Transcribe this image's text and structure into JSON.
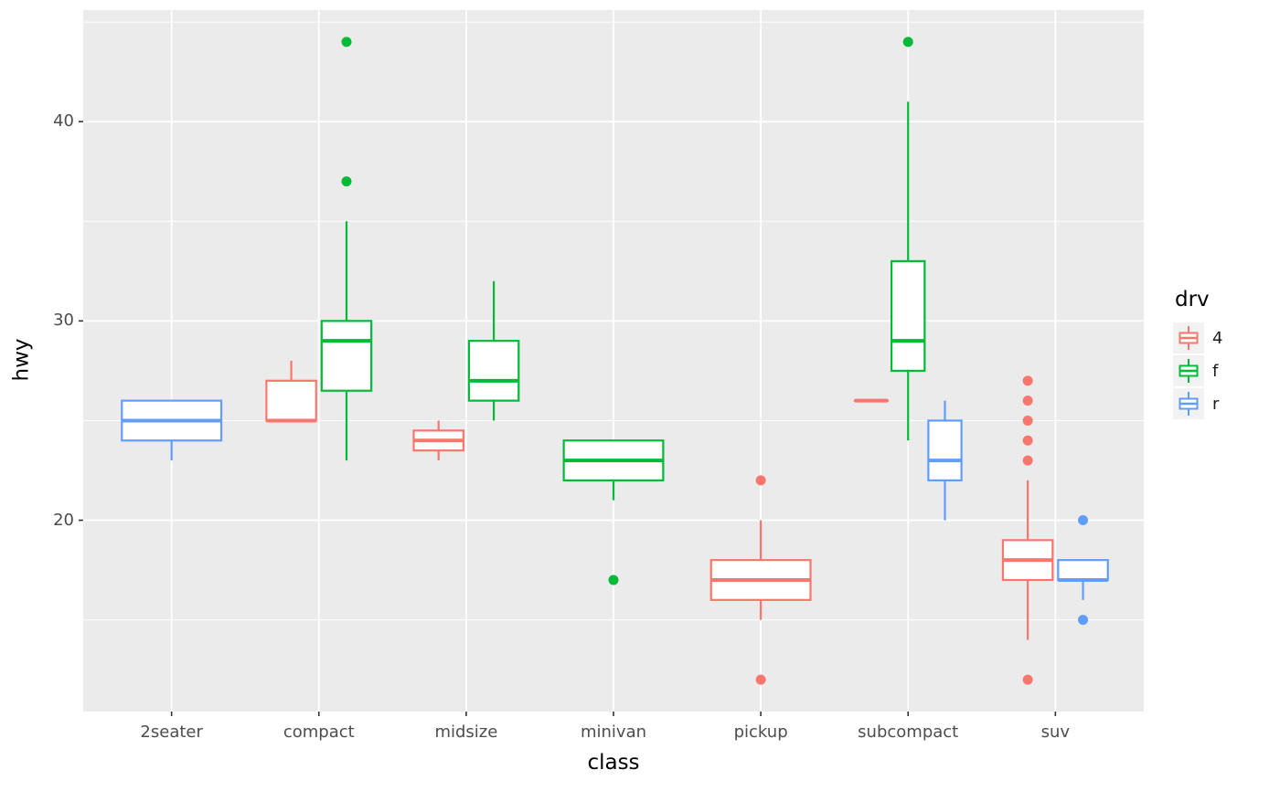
{
  "figure": {
    "background": "#FFFFFF",
    "panel_background": "#EBEBEB",
    "grid_color": "#FFFFFF",
    "tick_color": "#333333",
    "axis_text_color": "#4D4D4D",
    "title_color": "#000000",
    "legend_key_background": "#F2F2F2",
    "box_fill": "#FFFFFF"
  },
  "legend": {
    "title": "drv",
    "items": [
      {
        "label": "4",
        "color": "#F8766D"
      },
      {
        "label": "f",
        "color": "#00BA38"
      },
      {
        "label": "r",
        "color": "#619CFF"
      }
    ]
  },
  "chart_data": {
    "type": "boxplot",
    "title": "",
    "xlabel": "class",
    "ylabel": "hwy",
    "ylim": [
      10.4,
      45.6
    ],
    "y_major_ticks": [
      20,
      30,
      40
    ],
    "y_minor_ticks": [
      15,
      25,
      35,
      45
    ],
    "grid": true,
    "legend_position": "right",
    "categories": [
      "2seater",
      "compact",
      "midsize",
      "minivan",
      "pickup",
      "subcompact",
      "suv"
    ],
    "group_colors": {
      "4": "#F8766D",
      "f": "#00BA38",
      "r": "#619CFF"
    },
    "series": [
      {
        "class": "2seater",
        "drv": "r",
        "min": 23,
        "q1": 24,
        "median": 25,
        "q3": 26,
        "max": 26,
        "outliers": []
      },
      {
        "class": "compact",
        "drv": "4",
        "min": 25,
        "q1": 25,
        "median": 25,
        "q3": 27,
        "max": 28,
        "outliers": []
      },
      {
        "class": "compact",
        "drv": "f",
        "min": 23,
        "q1": 26.5,
        "median": 29,
        "q3": 30,
        "max": 35,
        "outliers": [
          37,
          44
        ]
      },
      {
        "class": "midsize",
        "drv": "4",
        "min": 23,
        "q1": 23.5,
        "median": 24,
        "q3": 24.5,
        "max": 25,
        "outliers": []
      },
      {
        "class": "midsize",
        "drv": "f",
        "min": 25,
        "q1": 26,
        "median": 27,
        "q3": 29,
        "max": 32,
        "outliers": []
      },
      {
        "class": "minivan",
        "drv": "f",
        "min": 21,
        "q1": 22,
        "median": 23,
        "q3": 24,
        "max": 24,
        "outliers": [
          17
        ]
      },
      {
        "class": "pickup",
        "drv": "4",
        "min": 15,
        "q1": 16,
        "median": 17,
        "q3": 18,
        "max": 20,
        "outliers": [
          22,
          12
        ]
      },
      {
        "class": "subcompact",
        "drv": "4",
        "min": 26,
        "q1": 26,
        "median": 26,
        "q3": 26,
        "max": 26,
        "outliers": []
      },
      {
        "class": "subcompact",
        "drv": "f",
        "min": 24,
        "q1": 27.5,
        "median": 29,
        "q3": 33,
        "max": 41,
        "outliers": [
          44
        ]
      },
      {
        "class": "subcompact",
        "drv": "r",
        "min": 20,
        "q1": 22,
        "median": 23,
        "q3": 25,
        "max": 26,
        "outliers": []
      },
      {
        "class": "suv",
        "drv": "4",
        "min": 14,
        "q1": 17,
        "median": 18,
        "q3": 19,
        "max": 22,
        "outliers": [
          27,
          26,
          25,
          24,
          23,
          12
        ]
      },
      {
        "class": "suv",
        "drv": "r",
        "min": 16,
        "q1": 17,
        "median": 17,
        "q3": 18,
        "max": 18,
        "outliers": [
          20,
          15
        ]
      }
    ]
  }
}
